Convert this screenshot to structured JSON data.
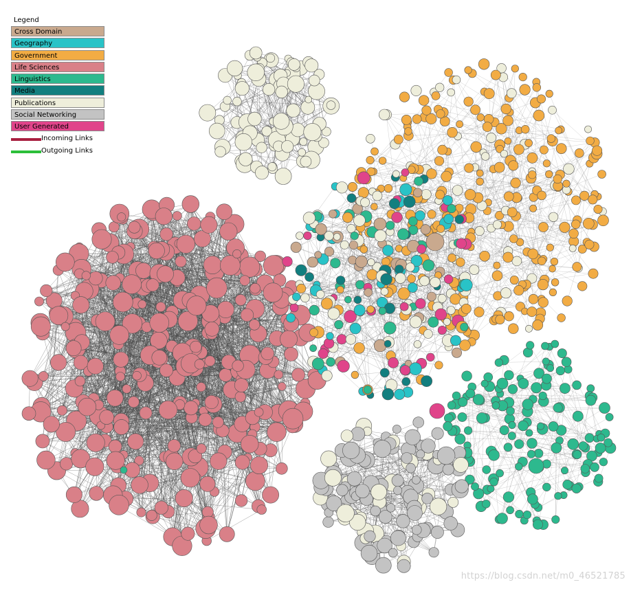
{
  "legend": {
    "title": "Legend",
    "categories": [
      {
        "label": "Cross Domain",
        "color": "#c9a98e"
      },
      {
        "label": "Geography",
        "color": "#29c3c7"
      },
      {
        "label": "Government",
        "color": "#f2ac44"
      },
      {
        "label": "Life Sciences",
        "color": "#d98088"
      },
      {
        "label": "Linguistics",
        "color": "#2db98e"
      },
      {
        "label": "Media",
        "color": "#127f7f"
      },
      {
        "label": "Publications",
        "color": "#eeeedb"
      },
      {
        "label": "Social Networking",
        "color": "#c3c3c3"
      },
      {
        "label": "User Generated",
        "color": "#e0448a"
      }
    ],
    "incoming_label": "Incoming Links",
    "incoming_color": "#a82040",
    "outgoing_label": "Outgoing Links",
    "outgoing_color": "#2cbf3a"
  },
  "watermark": "https://blog.csdn.net/m0_46521785"
}
